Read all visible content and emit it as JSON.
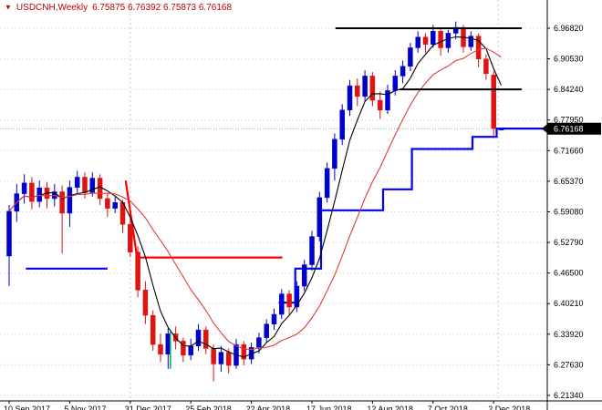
{
  "header": {
    "symbol_period": "USDCNH,Weekly",
    "ohlc": "6.75875 6.76392 6.75873 6.76168",
    "marker_icon": "▼"
  },
  "colors": {
    "background": "#FFFFFF",
    "bull": "#0000CD",
    "bear": "#DC1414",
    "ma_fast": "#000000",
    "ma_slow": "#E03C3C",
    "step_bull": "#0000FF",
    "step_bear": "#FF0000",
    "trendline": "#000000",
    "grid": "#DBDBDB",
    "separator": "#C8C8C8",
    "bid_line": "#9AA7B0",
    "axis_text": "#000000",
    "axis_line": "#000000",
    "title_text": "#C00000",
    "price_box_bg": "#000000",
    "price_box_text": "#FFFFFF",
    "object_mark": "#00B050"
  },
  "chart_data": {
    "type": "candlestick",
    "title": "USDCNH, Weekly",
    "symbol": "USDCNH",
    "timeframe": "Weekly",
    "current_price": "6.76168",
    "last_candle_ohlc": {
      "open": "6.75875",
      "high": "6.76392",
      "low": "6.75873",
      "close": "6.76168"
    },
    "y_axis": {
      "labels": [
        "6.96820",
        "6.90530",
        "6.84240",
        "6.77950",
        "6.71660",
        "6.65370",
        "6.59080",
        "6.52790",
        "6.46500",
        "6.40210",
        "6.33920",
        "6.27630",
        "6.21340"
      ],
      "top_price": 6.9682,
      "step": 0.0629
    },
    "x_axis": {
      "labels": [
        "10 Sep 2017",
        "5 Nov 2017",
        "31 Dec 2017",
        "25 Feb 2018",
        "22 Apr 2018",
        "17 Jun 2018",
        "12 Aug 2018",
        "7 Oct 2018",
        "2 Dec 2018"
      ],
      "label_weeks": [
        0,
        8,
        16,
        24,
        32,
        40,
        48,
        56,
        64
      ]
    },
    "separators_weeks": [
      16,
      64.6
    ],
    "candles_ohlc": [
      [
        6.5,
        6.605,
        6.438,
        6.592
      ],
      [
        6.592,
        6.648,
        6.57,
        6.628
      ],
      [
        6.628,
        6.668,
        6.608,
        6.65
      ],
      [
        6.65,
        6.662,
        6.596,
        6.612
      ],
      [
        6.612,
        6.655,
        6.6,
        6.64
      ],
      [
        6.64,
        6.652,
        6.598,
        6.618
      ],
      [
        6.618,
        6.648,
        6.602,
        6.632
      ],
      [
        6.632,
        6.645,
        6.505,
        6.588
      ],
      [
        6.588,
        6.655,
        6.56,
        6.641
      ],
      [
        6.641,
        6.675,
        6.63,
        6.662
      ],
      [
        6.662,
        6.672,
        6.618,
        6.63
      ],
      [
        6.63,
        6.672,
        6.622,
        6.66
      ],
      [
        6.66,
        6.668,
        6.605,
        6.618
      ],
      [
        6.618,
        6.63,
        6.58,
        6.598
      ],
      [
        6.598,
        6.622,
        6.588,
        6.61
      ],
      [
        6.61,
        6.615,
        6.548,
        6.565
      ],
      [
        6.565,
        6.58,
        6.498,
        6.508
      ],
      [
        6.508,
        6.52,
        6.415,
        6.43
      ],
      [
        6.43,
        6.448,
        6.36,
        6.378
      ],
      [
        6.378,
        6.388,
        6.305,
        6.318
      ],
      [
        6.318,
        6.34,
        6.282,
        6.298
      ],
      [
        6.298,
        6.352,
        6.268,
        6.34
      ],
      [
        6.34,
        6.355,
        6.308,
        6.325
      ],
      [
        6.325,
        6.332,
        6.282,
        6.296
      ],
      [
        6.296,
        6.33,
        6.286,
        6.315
      ],
      [
        6.315,
        6.36,
        6.305,
        6.348
      ],
      [
        6.348,
        6.355,
        6.298,
        6.31
      ],
      [
        6.31,
        6.318,
        6.242,
        6.278
      ],
      [
        6.278,
        6.315,
        6.262,
        6.302
      ],
      [
        6.302,
        6.31,
        6.258,
        6.275
      ],
      [
        6.275,
        6.33,
        6.268,
        6.318
      ],
      [
        6.318,
        6.325,
        6.275,
        6.288
      ],
      [
        6.288,
        6.322,
        6.278,
        6.312
      ],
      [
        6.312,
        6.342,
        6.3,
        6.332
      ],
      [
        6.332,
        6.37,
        6.322,
        6.36
      ],
      [
        6.36,
        6.392,
        6.348,
        6.38
      ],
      [
        6.38,
        6.432,
        6.37,
        6.422
      ],
      [
        6.422,
        6.43,
        6.378,
        6.395
      ],
      [
        6.395,
        6.448,
        6.385,
        6.438
      ],
      [
        6.438,
        6.492,
        6.428,
        6.482
      ],
      [
        6.482,
        6.552,
        6.47,
        6.54
      ],
      [
        6.54,
        6.632,
        6.53,
        6.62
      ],
      [
        6.62,
        6.692,
        6.61,
        6.68
      ],
      [
        6.68,
        6.752,
        6.655,
        6.74
      ],
      [
        6.74,
        6.812,
        6.728,
        6.8
      ],
      [
        6.8,
        6.862,
        6.788,
        6.85
      ],
      [
        6.85,
        6.865,
        6.808,
        6.828
      ],
      [
        6.828,
        6.882,
        6.818,
        6.87
      ],
      [
        6.87,
        6.878,
        6.808,
        6.82
      ],
      [
        6.82,
        6.838,
        6.782,
        6.8
      ],
      [
        6.8,
        6.852,
        6.792,
        6.84
      ],
      [
        6.84,
        6.882,
        6.83,
        6.87
      ],
      [
        6.87,
        6.902,
        6.855,
        6.89
      ],
      [
        6.89,
        6.938,
        6.88,
        6.928
      ],
      [
        6.928,
        6.962,
        6.918,
        6.95
      ],
      [
        6.95,
        6.958,
        6.918,
        6.935
      ],
      [
        6.935,
        6.975,
        6.928,
        6.962
      ],
      [
        6.962,
        6.968,
        6.912,
        6.928
      ],
      [
        6.928,
        6.965,
        6.918,
        6.958
      ],
      [
        6.958,
        6.982,
        6.945,
        6.97
      ],
      [
        6.97,
        6.975,
        6.918,
        6.93
      ],
      [
        6.93,
        6.962,
        6.922,
        6.952
      ],
      [
        6.952,
        6.958,
        6.888,
        6.905
      ],
      [
        6.905,
        6.915,
        6.862,
        6.875
      ],
      [
        6.872,
        6.88,
        6.742,
        6.762
      ],
      [
        6.75875,
        6.76392,
        6.75873,
        6.76168
      ]
    ],
    "indicators": {
      "ma_fast": {
        "type": "sma",
        "period": 5,
        "color_key": "ma_fast"
      },
      "ma_slow": {
        "type": "sma",
        "period": 13,
        "color_key": "ma_slow"
      },
      "step_line_segments": [
        {
          "color_key": "step_bull",
          "points": [
            [
              2.2,
              6.474
            ],
            [
              13.0,
              6.474
            ]
          ]
        },
        {
          "color_key": "step_bear",
          "points": [
            [
              15.4,
              6.655
            ],
            [
              16.9,
              6.497
            ],
            [
              36.1,
              6.497
            ]
          ]
        },
        {
          "color_key": "step_bull",
          "points": [
            [
              35.6,
              6.404
            ],
            [
              37.8,
              6.404
            ],
            [
              37.8,
              6.474
            ],
            [
              41.2,
              6.474
            ],
            [
              41.2,
              6.594
            ],
            [
              49.4,
              6.594
            ],
            [
              49.4,
              6.637
            ],
            [
              53.2,
              6.637
            ],
            [
              53.2,
              6.72
            ],
            [
              61.2,
              6.72
            ],
            [
              61.2,
              6.745
            ],
            [
              64.4,
              6.745
            ],
            [
              64.4,
              6.762
            ],
            [
              71.0,
              6.762
            ]
          ]
        }
      ]
    },
    "objects": {
      "trendlines": [
        {
          "price": 6.9682,
          "week_start": 43.1,
          "week_end": 67.7
        },
        {
          "price": 6.8424,
          "week_start": 51.6,
          "week_end": 67.7
        }
      ],
      "vertical_mark": {
        "week": 21.3,
        "price_from": 6.268,
        "price_to": 6.345
      }
    }
  }
}
